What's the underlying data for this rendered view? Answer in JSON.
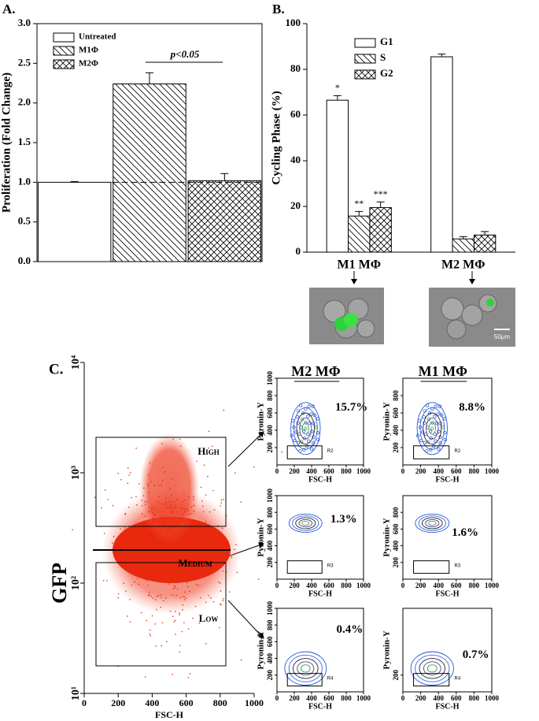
{
  "chart_data": [
    {
      "type": "bar",
      "panel_label": "A.",
      "ylabel": "Proliferation (Fold Change)",
      "categories": [
        null,
        null,
        null
      ],
      "series": [
        {
          "name": "Untreated",
          "pattern": "none",
          "values": [
            1.0,
            null,
            null
          ],
          "errors": [
            0.01,
            null,
            null
          ]
        },
        {
          "name": "M1Φ",
          "pattern": "diagonal",
          "values": [
            null,
            2.24,
            null
          ],
          "errors": [
            null,
            0.14,
            null
          ]
        },
        {
          "name": "M2Φ",
          "pattern": "crosshatch",
          "values": [
            null,
            null,
            1.02
          ],
          "errors": [
            null,
            null,
            0.09
          ]
        }
      ],
      "annotation": "p<0.05",
      "reference_line": 1.0,
      "ylim": [
        0,
        3
      ],
      "yticks": [
        {
          "value": 0,
          "label": "0.0"
        },
        {
          "value": 0.5,
          "label": "0.5"
        },
        {
          "value": 1,
          "label": "1.0"
        },
        {
          "value": 1.5,
          "label": "1.5"
        },
        {
          "value": 2,
          "label": "2.0"
        },
        {
          "value": 2.5,
          "label": "2.5"
        },
        {
          "value": 3,
          "label": "3.0"
        }
      ]
    },
    {
      "type": "bar",
      "panel_label": "B.",
      "ylabel": "Cycling Phase (%)",
      "categories": [
        "M1 MΦ",
        "M2 MΦ"
      ],
      "series": [
        {
          "name": "G1",
          "pattern": "none",
          "values": [
            66.5,
            85.5
          ],
          "errors": [
            2.0,
            1.2
          ],
          "annotations": [
            "*",
            null
          ]
        },
        {
          "name": "S",
          "pattern": "diagonal",
          "values": [
            15.8,
            5.8
          ],
          "errors": [
            2.0,
            1.0
          ],
          "annotations": [
            "**",
            null
          ]
        },
        {
          "name": "G2",
          "pattern": "crosshatch",
          "values": [
            19.5,
            7.5
          ],
          "errors": [
            2.5,
            1.5
          ],
          "annotations": [
            "***",
            null
          ]
        }
      ],
      "scale_bar_label": "50μm",
      "ylim": [
        0,
        100
      ],
      "yticks": [
        0,
        20,
        40,
        60,
        80,
        100
      ]
    },
    {
      "type": "scatter",
      "panel_label": "C.",
      "xlabel": "FSC-H",
      "ylabel": "GFP",
      "log_y": true,
      "gate_labels": [
        "High",
        "Medium",
        "Low"
      ],
      "xlim": [
        0,
        1000
      ],
      "xticks": [
        0,
        200,
        400,
        600,
        800,
        1000
      ],
      "ylim": [
        10,
        10000
      ],
      "yticks": [
        {
          "value": 10,
          "label": "10¹"
        },
        {
          "value": 100,
          "label": "10²"
        },
        {
          "value": 1000,
          "label": "10³"
        },
        {
          "value": 10000,
          "label": "10⁴"
        }
      ]
    },
    {
      "type": "contour",
      "title": "M2 MΦ",
      "xlabel": "FSC-H",
      "ylabel": "Pyronin-Y",
      "gate": "R2",
      "value": 15.7,
      "value_label": "15.7%",
      "xlim": [
        0,
        1000
      ],
      "xticks": [
        0,
        200,
        400,
        600,
        800,
        1000
      ],
      "ylim": [
        0,
        1000
      ],
      "yticks": [
        200,
        400,
        600,
        800,
        1000
      ]
    },
    {
      "type": "contour",
      "title": "M1 MΦ",
      "xlabel": "FSC-H",
      "ylabel": "Pyronin-Y",
      "gate": "R2",
      "value": 8.8,
      "value_label": "8.8%",
      "xlim": [
        0,
        1000
      ],
      "xticks": [
        0,
        200,
        400,
        600,
        800,
        1000
      ],
      "ylim": [
        0,
        1000
      ],
      "yticks": [
        200,
        400,
        600,
        800
      ]
    },
    {
      "type": "contour",
      "xlabel": "FSC-H",
      "ylabel": "Pyronin-Y",
      "gate": "R3",
      "value": 1.3,
      "value_label": "1.3%",
      "xlim": [
        0,
        1000
      ],
      "xticks": [
        0,
        200,
        400,
        600,
        800,
        1000
      ],
      "ylim": [
        0,
        1000
      ],
      "yticks": [
        200,
        400,
        600,
        800,
        1000
      ]
    },
    {
      "type": "contour",
      "xlabel": "FSC-H",
      "ylabel": "Pyronin-Y",
      "gate": "R3",
      "value": 1.6,
      "value_label": "1.6%",
      "xlim": [
        0,
        1000
      ],
      "xticks": [
        0,
        200,
        400,
        600,
        800,
        1000
      ],
      "ylim": [
        0,
        1000
      ],
      "yticks": [
        200,
        400,
        600,
        800
      ]
    },
    {
      "type": "contour",
      "xlabel": "FSC-H",
      "ylabel": "Pyronin-Y",
      "gate": "R4",
      "value": 0.4,
      "value_label": "0.4%",
      "xlim": [
        0,
        1000
      ],
      "xticks": [
        0,
        200,
        400,
        600,
        800,
        1000
      ],
      "ylim": [
        0,
        1000
      ],
      "yticks": [
        200,
        400,
        600,
        800,
        1000
      ]
    },
    {
      "type": "contour",
      "xlabel": "FSC-H",
      "ylabel": "Pyronin-Y",
      "gate": "R4",
      "value": 0.7,
      "value_label": "0.7%",
      "xlim": [
        0,
        1000
      ],
      "xticks": [
        0,
        200,
        400,
        600,
        800,
        1000
      ],
      "ylim": [
        0,
        1000
      ],
      "yticks": [
        200
      ]
    }
  ]
}
